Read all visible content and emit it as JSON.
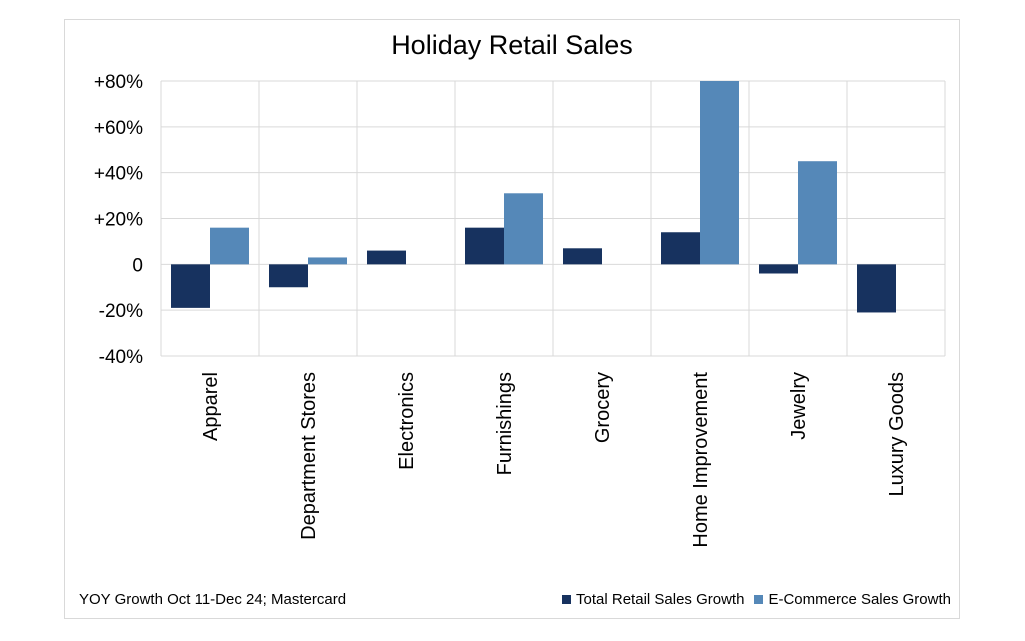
{
  "chart_data": {
    "type": "bar",
    "title": "Holiday Retail Sales",
    "xlabel": "",
    "ylabel": "",
    "categories": [
      "Apparel",
      "Department Stores",
      "Electronics",
      "Furnishings",
      "Grocery",
      "Home Improvement",
      "Jewelry",
      "Luxury Goods"
    ],
    "series": [
      {
        "name": "Total Retail Sales Growth",
        "color": "#17325f",
        "values": [
          -19,
          -10,
          6,
          16,
          7,
          14,
          -4,
          -21
        ]
      },
      {
        "name": "E-Commerce Sales Growth",
        "color": "#5588b8",
        "values": [
          16,
          3,
          null,
          31,
          null,
          80,
          45,
          null
        ]
      }
    ],
    "ylim": [
      -40,
      80
    ],
    "yticks": [
      80,
      60,
      40,
      20,
      0,
      -20,
      -40
    ],
    "ytick_labels": [
      "+80%",
      "+60%",
      "+40%",
      "+20%",
      "0",
      "-20%",
      "-40%"
    ],
    "grid": true,
    "legend_position": "bottom-right",
    "note": "YOY Growth Oct 11-Dec 24; Mastercard"
  }
}
